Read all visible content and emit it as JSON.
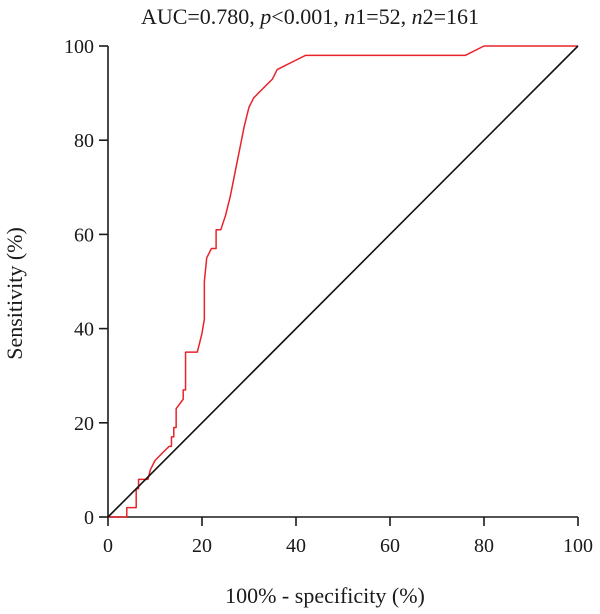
{
  "chart_data": {
    "type": "line",
    "title_parts": [
      {
        "text": "AUC=0.780, ",
        "italic": false
      },
      {
        "text": "p",
        "italic": true
      },
      {
        "text": "<0.001, ",
        "italic": false
      },
      {
        "text": "n",
        "italic": true
      },
      {
        "text": "1=52, ",
        "italic": false
      },
      {
        "text": "n",
        "italic": true
      },
      {
        "text": "2=161",
        "italic": false
      }
    ],
    "xlabel": "100% - specificity (%)",
    "ylabel": "Sensitivity (%)",
    "xlim": [
      0,
      100
    ],
    "ylim": [
      0,
      100
    ],
    "x_ticks": [
      0,
      20,
      40,
      60,
      80,
      100
    ],
    "y_ticks": [
      0,
      20,
      40,
      60,
      80,
      100
    ],
    "grid": false,
    "series": [
      {
        "color": "#e8232a",
        "style": "step",
        "points": [
          [
            0,
            0
          ],
          [
            4,
            0
          ],
          [
            4,
            2
          ],
          [
            6,
            2
          ],
          [
            6,
            6
          ],
          [
            6.5,
            6
          ],
          [
            6.5,
            8
          ],
          [
            8,
            8
          ],
          [
            8.5,
            8
          ],
          [
            9,
            10
          ],
          [
            10,
            12
          ],
          [
            11,
            13
          ],
          [
            13,
            15
          ],
          [
            13.5,
            15
          ],
          [
            13.5,
            17
          ],
          [
            14,
            17
          ],
          [
            14,
            19
          ],
          [
            14.5,
            19
          ],
          [
            14.5,
            23
          ],
          [
            16,
            25
          ],
          [
            16,
            27
          ],
          [
            16.5,
            27
          ],
          [
            16.5,
            35
          ],
          [
            19,
            35
          ],
          [
            20,
            39
          ],
          [
            20.5,
            42
          ],
          [
            20.5,
            50
          ],
          [
            21,
            55
          ],
          [
            22,
            57
          ],
          [
            23,
            57
          ],
          [
            23,
            61
          ],
          [
            24,
            61
          ],
          [
            25,
            64
          ],
          [
            26,
            68
          ],
          [
            27,
            73
          ],
          [
            28,
            78
          ],
          [
            29,
            83
          ],
          [
            30,
            87
          ],
          [
            31,
            89
          ],
          [
            33,
            91
          ],
          [
            35,
            93
          ],
          [
            36,
            95
          ],
          [
            38,
            96
          ],
          [
            40,
            97
          ],
          [
            42,
            98
          ],
          [
            76,
            98
          ],
          [
            80,
            100
          ],
          [
            100,
            100
          ]
        ]
      },
      {
        "color": "#111111",
        "style": "reference",
        "points": [
          [
            0,
            0
          ],
          [
            100,
            100
          ]
        ]
      }
    ]
  }
}
